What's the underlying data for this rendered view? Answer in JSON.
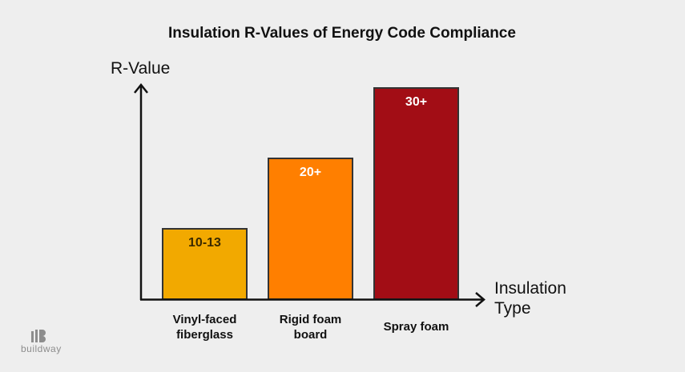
{
  "chart_data": {
    "type": "bar",
    "title": "Insulation R-Values of Energy Code Compliance",
    "ylabel": "R-Value",
    "xlabel": [
      "Insulation",
      "Type"
    ],
    "categories": [
      [
        "Vinyl-faced",
        "fiberglass"
      ],
      [
        "Rigid foam",
        "board"
      ],
      [
        "Spray foam"
      ]
    ],
    "values": [
      10,
      20,
      30
    ],
    "data_labels": [
      "10-13",
      "20+",
      "30+"
    ],
    "colors": [
      "#f2a900",
      "#ff7f00",
      "#a20d15"
    ],
    "label_colors": [
      "#3a2a00",
      "#ffffff",
      "#ffffff"
    ],
    "ylim": [
      0,
      30
    ],
    "grid": false
  },
  "logo": {
    "text": "buildway"
  }
}
